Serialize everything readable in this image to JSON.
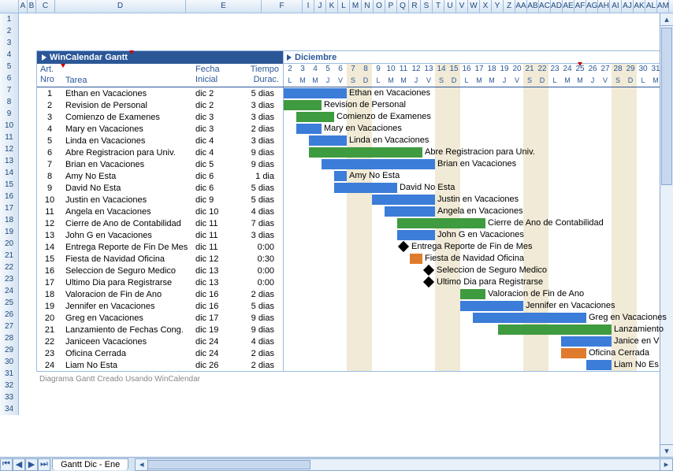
{
  "spreadsheet": {
    "columns": [
      "A",
      "B",
      "C",
      "D",
      "E",
      "F",
      "I",
      "J",
      "K",
      "L",
      "M",
      "N",
      "O",
      "P",
      "Q",
      "R",
      "S",
      "T",
      "U",
      "V",
      "W",
      "X",
      "Y",
      "Z",
      "AA",
      "AB",
      "AC",
      "AD",
      "AE",
      "AF",
      "AG",
      "AH",
      "AI",
      "AJ",
      "AK",
      "AL",
      "AM"
    ],
    "col_widths": {
      "A": 11,
      "B": 11,
      "C": 24,
      "D": 166,
      "E": 96,
      "F": 52,
      "default": 15
    },
    "row_count": 34,
    "sheet_tab": "Gantt Dic - Ene",
    "footer_note": "Diagrama Gantt Creado Usando WinCalendar"
  },
  "gantt": {
    "title_left": "WinCalendar Gantt",
    "title_right": "Diciembre",
    "headers": {
      "nro_top": "Art.",
      "nro_bot": "Nro",
      "tarea": "Tarea",
      "fecha_top": "Fecha",
      "fecha_bot": "Inicial",
      "durac_top": "Tiempo",
      "durac_bot": "Durac."
    },
    "days": [
      2,
      3,
      4,
      5,
      6,
      7,
      8,
      9,
      10,
      11,
      12,
      13,
      14,
      15,
      16,
      17,
      18,
      19,
      20,
      21,
      22,
      23,
      24,
      25,
      26,
      27,
      28,
      29,
      30,
      31
    ],
    "day_letters": [
      "L",
      "M",
      "M",
      "J",
      "V",
      "S",
      "D",
      "L",
      "M",
      "M",
      "J",
      "V",
      "S",
      "D",
      "L",
      "M",
      "M",
      "J",
      "V",
      "S",
      "D",
      "L",
      "M",
      "M",
      "J",
      "V",
      "S",
      "D",
      "L",
      "M"
    ],
    "weekend_indices": [
      5,
      6,
      12,
      13,
      19,
      20,
      26,
      27
    ],
    "holiday_index": 23,
    "day_width": 16,
    "colors": {
      "blue": "#3b7dd8",
      "green": "#3f9b3f",
      "orange": "#e07b2e",
      "black": "#000000",
      "header_bg": "#2b5797",
      "weekend_bg": "#f0ead6"
    },
    "tasks": [
      {
        "nro": 1,
        "tarea": "Ethan en Vacaciones",
        "fecha": "dic 2",
        "durac": "5 dias",
        "start": 2,
        "len": 5,
        "color": "blue",
        "label": "Ethan en Vacaciones"
      },
      {
        "nro": 2,
        "tarea": "Revision de Personal",
        "fecha": "dic 2",
        "durac": "3 dias",
        "start": 2,
        "len": 3,
        "color": "green",
        "label": "Revision de Personal"
      },
      {
        "nro": 3,
        "tarea": "Comienzo de Examenes",
        "fecha": "dic 3",
        "durac": "3 dias",
        "start": 3,
        "len": 3,
        "color": "green",
        "label": "Comienzo de Examenes"
      },
      {
        "nro": 4,
        "tarea": "Mary en Vacaciones",
        "fecha": "dic 3",
        "durac": "2 dias",
        "start": 3,
        "len": 2,
        "color": "blue",
        "label": "Mary en Vacaciones"
      },
      {
        "nro": 5,
        "tarea": "Linda en Vacaciones",
        "fecha": "dic 4",
        "durac": "3 dias",
        "start": 4,
        "len": 3,
        "color": "blue",
        "label": "Linda en Vacaciones"
      },
      {
        "nro": 6,
        "tarea": "Abre Registracion para Univ.",
        "fecha": "dic 4",
        "durac": "9 dias",
        "start": 4,
        "len": 9,
        "color": "green",
        "label": "Abre Registracion para Univ."
      },
      {
        "nro": 7,
        "tarea": "Brian en Vacaciones",
        "fecha": "dic 5",
        "durac": "9 dias",
        "start": 5,
        "len": 9,
        "color": "blue",
        "label": "Brian en Vacaciones"
      },
      {
        "nro": 8,
        "tarea": "Amy No Esta",
        "fecha": "dic 6",
        "durac": "1 dia",
        "start": 6,
        "len": 1,
        "color": "blue",
        "label": "Amy No Esta"
      },
      {
        "nro": 9,
        "tarea": "David No Esta",
        "fecha": "dic 6",
        "durac": "5 dias",
        "start": 6,
        "len": 5,
        "color": "blue",
        "label": "David No Esta"
      },
      {
        "nro": 10,
        "tarea": "Justin en Vacaciones",
        "fecha": "dic 9",
        "durac": "5 dias",
        "start": 9,
        "len": 5,
        "color": "blue",
        "label": "Justin en Vacaciones"
      },
      {
        "nro": 11,
        "tarea": "Angela en Vacaciones",
        "fecha": "dic 10",
        "durac": "4 dias",
        "start": 10,
        "len": 4,
        "color": "blue",
        "label": "Angela en Vacaciones"
      },
      {
        "nro": 12,
        "tarea": "Cierre de Ano de Contabilidad",
        "fecha": "dic 11",
        "durac": "7 dias",
        "start": 11,
        "len": 7,
        "color": "green",
        "label": "Cierre de Ano de Contabilidad"
      },
      {
        "nro": 13,
        "tarea": "John G en Vacaciones",
        "fecha": "dic 11",
        "durac": "3 dias",
        "start": 11,
        "len": 3,
        "color": "blue",
        "label": "John G en Vacaciones"
      },
      {
        "nro": 14,
        "tarea": "Entrega Reporte de Fin De Mes",
        "fecha": "dic 11",
        "durac": "0:00",
        "start": 11,
        "len": 0,
        "color": "black",
        "label": "Entrega Reporte de Fin de Mes",
        "milestone": true
      },
      {
        "nro": 15,
        "tarea": "Fiesta de Navidad Oficina",
        "fecha": "dic 12",
        "durac": "0:30",
        "start": 12,
        "len": 1,
        "color": "orange",
        "label": "Fiesta de Navidad Oficina"
      },
      {
        "nro": 16,
        "tarea": "Seleccion de Seguro Medico",
        "fecha": "dic 13",
        "durac": "0:00",
        "start": 13,
        "len": 0,
        "color": "black",
        "label": "Seleccion de Seguro Medico",
        "milestone": true
      },
      {
        "nro": 17,
        "tarea": "Ultimo Dia para Registrarse",
        "fecha": "dic 13",
        "durac": "0:00",
        "start": 13,
        "len": 0,
        "color": "black",
        "label": "Ultimo Dia para Registrarse",
        "milestone": true
      },
      {
        "nro": 18,
        "tarea": "Valoracion de Fin de Ano",
        "fecha": "dic 16",
        "durac": "2 dias",
        "start": 16,
        "len": 2,
        "color": "green",
        "label": "Valoracion de Fin de Ano"
      },
      {
        "nro": 19,
        "tarea": "Jennifer en Vacaciones",
        "fecha": "dic 16",
        "durac": "5 dias",
        "start": 16,
        "len": 5,
        "color": "blue",
        "label": "Jennifer en Vacaciones"
      },
      {
        "nro": 20,
        "tarea": "Greg en Vacaciones",
        "fecha": "dic 17",
        "durac": "9 dias",
        "start": 17,
        "len": 9,
        "color": "blue",
        "label": "Greg en Vacaciones"
      },
      {
        "nro": 21,
        "tarea": "Lanzamiento de Fechas Cong.",
        "fecha": "dic 19",
        "durac": "9 dias",
        "start": 19,
        "len": 9,
        "color": "green",
        "label": "Lanzamiento"
      },
      {
        "nro": 22,
        "tarea": "Janiceen Vacaciones",
        "fecha": "dic 24",
        "durac": "4 dias",
        "start": 24,
        "len": 4,
        "color": "blue",
        "label": "Janice en V"
      },
      {
        "nro": 23,
        "tarea": "Oficina Cerrada",
        "fecha": "dic 24",
        "durac": "2 dias",
        "start": 24,
        "len": 2,
        "color": "orange",
        "label": "Oficina Cerrada"
      },
      {
        "nro": 24,
        "tarea": "Liam No Esta",
        "fecha": "dic 26",
        "durac": "2 dias",
        "start": 26,
        "len": 2,
        "color": "blue",
        "label": "Liam No Es"
      }
    ]
  }
}
